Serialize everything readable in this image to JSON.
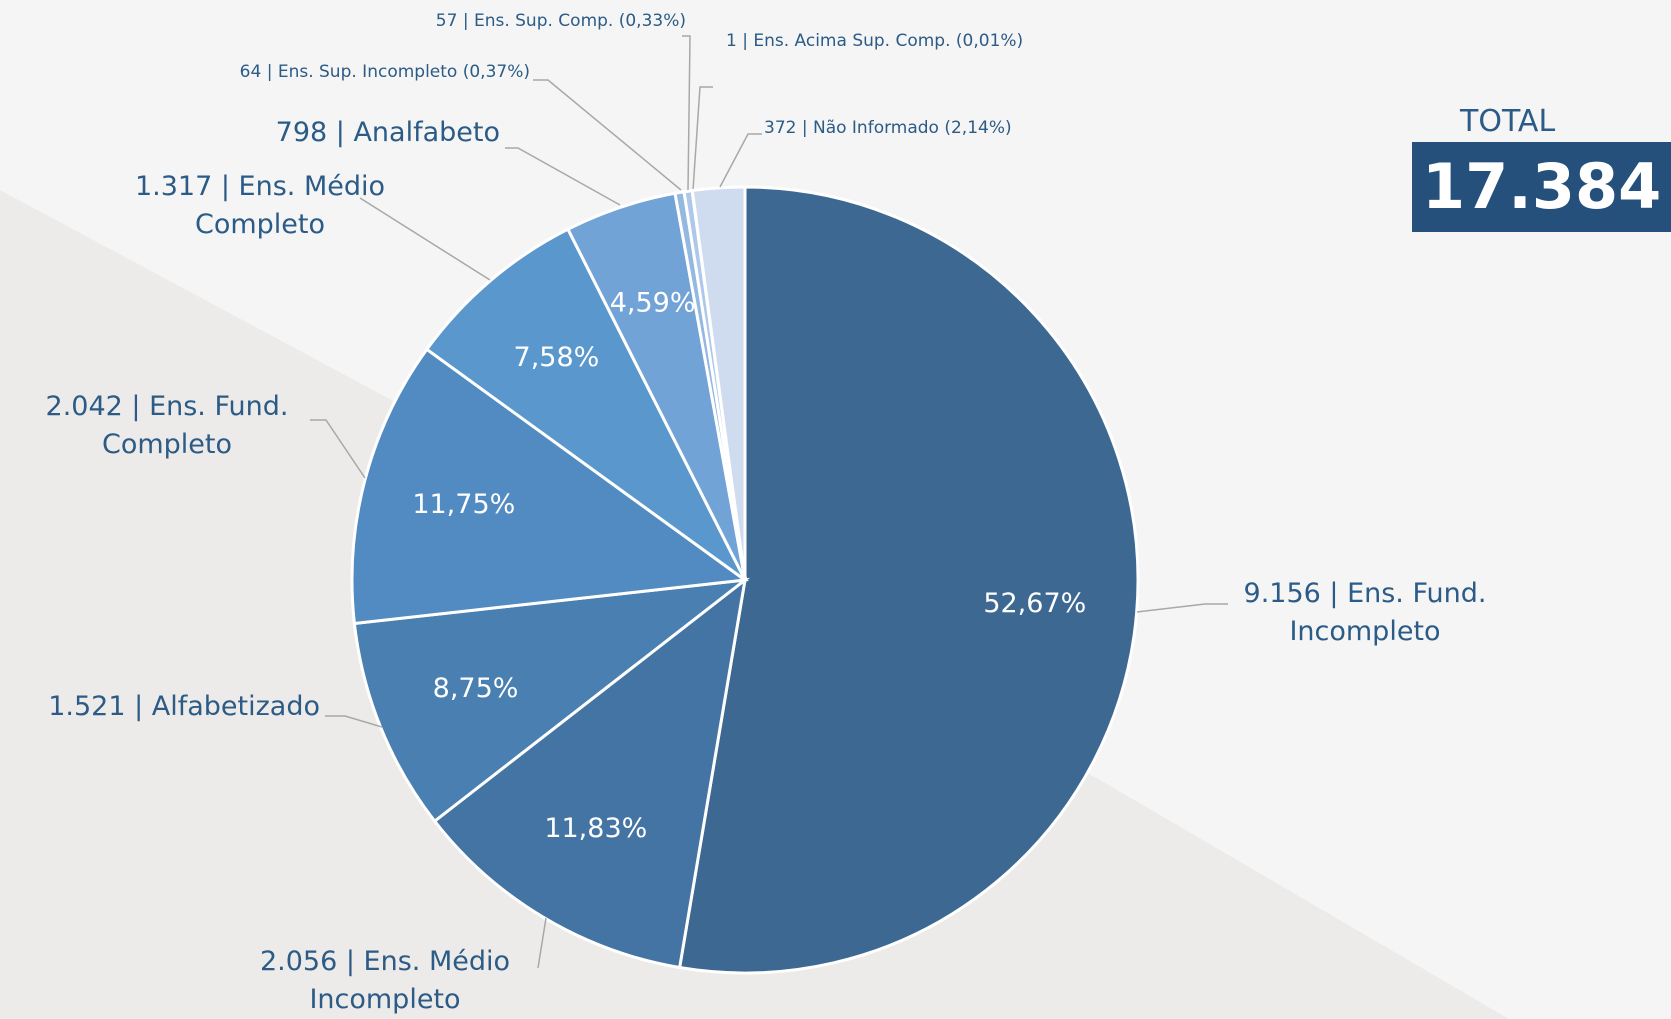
{
  "chart_data": {
    "type": "pie",
    "categories": [
      "9.156 | Ens. Fund. Incompleto",
      "2.056 | Ens. Médio Incompleto",
      "1.521 | Alfabetizado",
      "2.042 | Ens. Fund. Completo",
      "1.317 | Ens. Médio Completo",
      "798 | Analfabeto",
      "64 | Ens. Sup. Incompleto (0,37%)",
      "57 | Ens. Sup. Comp. (0,33%)",
      "1 | Ens. Acima Sup. Comp. (0,01%)",
      "372 | Não Informado (2,14%)"
    ],
    "values": [
      52.67,
      11.83,
      8.75,
      11.75,
      7.58,
      4.59,
      0.37,
      0.33,
      0.01,
      2.14
    ],
    "value_labels": [
      "52,67%",
      "11,83%",
      "8,75%",
      "11,75%",
      "7,58%",
      "4,59%",
      null,
      null,
      null,
      null
    ],
    "colors": [
      "#3d6891",
      "#4474a3",
      "#4a7fb2",
      "#528bc1",
      "#5997cd",
      "#72a3d7",
      "#94b8e2",
      "#adc8ea",
      "#bcd2ee",
      "#cfdcef"
    ],
    "total_label": "TOTAL",
    "total": "17.384"
  }
}
